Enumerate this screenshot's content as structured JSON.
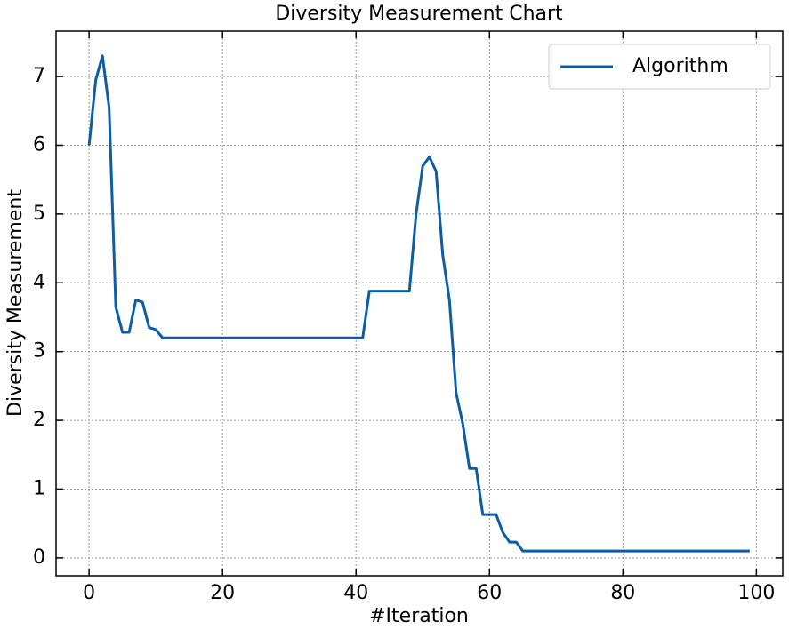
{
  "chart_data": {
    "type": "line",
    "title": "Diversity Measurement Chart",
    "x_label": "#Iteration",
    "y_label": "Diversity Measurement",
    "x": [
      0,
      1,
      2,
      3,
      4,
      5,
      6,
      7,
      8,
      9,
      10,
      11,
      12,
      13,
      14,
      15,
      16,
      17,
      18,
      19,
      20,
      21,
      22,
      23,
      24,
      25,
      26,
      27,
      28,
      29,
      30,
      31,
      32,
      33,
      34,
      35,
      36,
      37,
      38,
      39,
      40,
      41,
      42,
      43,
      44,
      45,
      46,
      47,
      48,
      49,
      50,
      51,
      52,
      53,
      54,
      55,
      56,
      57,
      58,
      59,
      60,
      61,
      62,
      63,
      64,
      65,
      66,
      67,
      68,
      69,
      70,
      71,
      72,
      73,
      74,
      75,
      76,
      77,
      78,
      79,
      80,
      81,
      82,
      83,
      84,
      85,
      86,
      87,
      88,
      89,
      90,
      91,
      92,
      93,
      94,
      95,
      96,
      97,
      98,
      99
    ],
    "series": [
      {
        "name": "Algorithm",
        "color": "#0C5DA5",
        "values": [
          6.0,
          6.95,
          7.3,
          6.55,
          3.65,
          3.28,
          3.28,
          3.75,
          3.72,
          3.35,
          3.32,
          3.2,
          3.2,
          3.2,
          3.2,
          3.2,
          3.2,
          3.2,
          3.2,
          3.2,
          3.2,
          3.2,
          3.2,
          3.2,
          3.2,
          3.2,
          3.2,
          3.2,
          3.2,
          3.2,
          3.2,
          3.2,
          3.2,
          3.2,
          3.2,
          3.2,
          3.2,
          3.2,
          3.2,
          3.2,
          3.2,
          3.2,
          3.88,
          3.88,
          3.88,
          3.88,
          3.88,
          3.88,
          3.88,
          5.0,
          5.7,
          5.83,
          5.62,
          4.4,
          3.75,
          2.4,
          1.95,
          1.3,
          1.3,
          0.63,
          0.63,
          0.63,
          0.37,
          0.23,
          0.23,
          0.1,
          0.1,
          0.1,
          0.1,
          0.1,
          0.1,
          0.1,
          0.1,
          0.1,
          0.1,
          0.1,
          0.1,
          0.1,
          0.1,
          0.1,
          0.1,
          0.1,
          0.1,
          0.1,
          0.1,
          0.1,
          0.1,
          0.1,
          0.1,
          0.1,
          0.1,
          0.1,
          0.1,
          0.1,
          0.1,
          0.1,
          0.1,
          0.1,
          0.1,
          0.1
        ]
      }
    ],
    "xlim": [
      -4.95,
      103.95
    ],
    "ylim": [
      -0.26,
      7.66
    ],
    "xticks": [
      0,
      20,
      40,
      60,
      80,
      100
    ],
    "yticks": [
      0,
      1,
      2,
      3,
      4,
      5,
      6,
      7
    ],
    "grid": true,
    "legend": "upper right"
  }
}
